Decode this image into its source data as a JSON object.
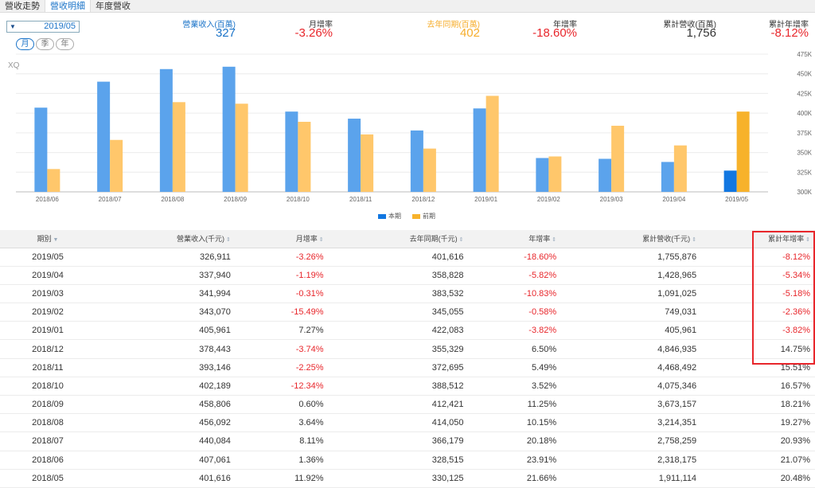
{
  "tabs": [
    {
      "label": "營收走勢"
    },
    {
      "label": "營收明細"
    },
    {
      "label": "年度營收"
    }
  ],
  "period": {
    "value": "2019/05",
    "caret": "▼"
  },
  "modes": [
    "月",
    "季",
    "年"
  ],
  "summary": {
    "revenue_label": "營業收入(百萬)",
    "revenue_value": "327",
    "mom_label": "月增率",
    "mom_value": "-3.26%",
    "prev_label": "去年同期(百萬)",
    "prev_value": "402",
    "yoy_label": "年增率",
    "yoy_value": "-18.60%",
    "cum_label": "累計營收(百萬)",
    "cum_value": "1,756",
    "cumyoy_label": "累計年增率",
    "cumyoy_value": "-8.12%"
  },
  "chart_watermark": "XQ",
  "chart_data": {
    "type": "bar",
    "categories": [
      "2018/06",
      "2018/07",
      "2018/08",
      "2018/09",
      "2018/10",
      "2018/11",
      "2018/12",
      "2019/01",
      "2019/02",
      "2019/03",
      "2019/04",
      "2019/05"
    ],
    "series": [
      {
        "name": "本期",
        "values": [
          407,
          440,
          456,
          459,
          402,
          393,
          378,
          406,
          343,
          342,
          338,
          327
        ]
      },
      {
        "name": "前期",
        "values": [
          329,
          366,
          414,
          412,
          389,
          373,
          355,
          422,
          345,
          384,
          359,
          402
        ]
      }
    ],
    "ylim": [
      300,
      475
    ],
    "yticks": [
      "300K",
      "325K",
      "350K",
      "375K",
      "400K",
      "425K",
      "450K",
      "475K"
    ],
    "colors": {
      "current": "#5ba3ec",
      "previous": "#ffc76b",
      "current_last": "#1277e1",
      "previous_last": "#f7b22b"
    }
  },
  "legend": {
    "current": "本期",
    "previous": "前期"
  },
  "table": {
    "headers": [
      "期別",
      "營業收入(千元)",
      "月增率",
      "去年同期(千元)",
      "年增率",
      "累計營收(千元)",
      "累計年增率"
    ],
    "rows": [
      [
        "2019/05",
        "326,911",
        "-3.26%",
        "401,616",
        "-18.60%",
        "1,755,876",
        "-8.12%"
      ],
      [
        "2019/04",
        "337,940",
        "-1.19%",
        "358,828",
        "-5.82%",
        "1,428,965",
        "-5.34%"
      ],
      [
        "2019/03",
        "341,994",
        "-0.31%",
        "383,532",
        "-10.83%",
        "1,091,025",
        "-5.18%"
      ],
      [
        "2019/02",
        "343,070",
        "-15.49%",
        "345,055",
        "-0.58%",
        "749,031",
        "-2.36%"
      ],
      [
        "2019/01",
        "405,961",
        "7.27%",
        "422,083",
        "-3.82%",
        "405,961",
        "-3.82%"
      ],
      [
        "2018/12",
        "378,443",
        "-3.74%",
        "355,329",
        "6.50%",
        "4,846,935",
        "14.75%"
      ],
      [
        "2018/11",
        "393,146",
        "-2.25%",
        "372,695",
        "5.49%",
        "4,468,492",
        "15.51%"
      ],
      [
        "2018/10",
        "402,189",
        "-12.34%",
        "388,512",
        "3.52%",
        "4,075,346",
        "16.57%"
      ],
      [
        "2018/09",
        "458,806",
        "0.60%",
        "412,421",
        "11.25%",
        "3,673,157",
        "18.21%"
      ],
      [
        "2018/08",
        "456,092",
        "3.64%",
        "414,050",
        "10.15%",
        "3,214,351",
        "19.27%"
      ],
      [
        "2018/07",
        "440,084",
        "8.11%",
        "366,179",
        "20.18%",
        "2,758,259",
        "20.93%"
      ],
      [
        "2018/06",
        "407,061",
        "1.36%",
        "328,515",
        "23.91%",
        "2,318,175",
        "21.07%"
      ],
      [
        "2018/05",
        "401,616",
        "11.92%",
        "330,125",
        "21.66%",
        "1,911,114",
        "20.48%"
      ]
    ]
  }
}
